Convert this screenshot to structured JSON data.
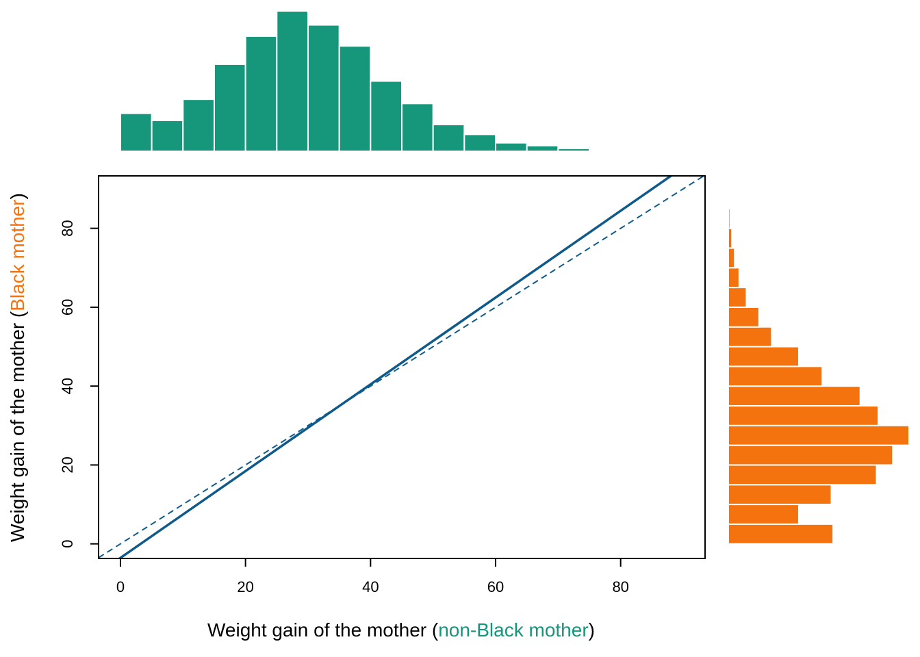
{
  "colors": {
    "non_black": "#16967A",
    "black": "#F5730E",
    "line": "#0E5A8A",
    "axis": "#000000"
  },
  "chart_data": [
    {
      "type": "line",
      "xlabel": {
        "prefix": "Weight gain of the mother (",
        "highlight": "non-Black mother",
        "suffix": ")"
      },
      "ylabel": {
        "prefix": "Weight gain of the mother (",
        "highlight": "Black mother",
        "suffix": ")"
      },
      "xlim": [
        -3.5,
        93.5
      ],
      "ylim": [
        -3.7,
        93.3
      ],
      "x_ticks": [
        "0",
        "20",
        "40",
        "60",
        "80"
      ],
      "y_ticks": [
        "0",
        "20",
        "40",
        "60",
        "80"
      ],
      "series": [
        {
          "style": "solid",
          "x": [
            -3.5,
            93.5
          ],
          "y": [
            -7.4,
            99.3
          ]
        },
        {
          "style": "dashed",
          "x": [
            -3.5,
            93.5
          ],
          "y": [
            -3.5,
            93.5
          ]
        }
      ],
      "grid": false
    },
    {
      "type": "bar",
      "orientation": "vertical",
      "bin_edges": [
        0,
        5,
        10,
        15,
        20,
        25,
        30,
        35,
        40,
        45,
        50,
        55,
        60,
        65,
        70,
        75,
        80
      ],
      "values": [
        27,
        22,
        37,
        62,
        82,
        100,
        90,
        75,
        50,
        34,
        19,
        12,
        6,
        4,
        2,
        0.5
      ],
      "ylim": [
        0,
        100
      ]
    },
    {
      "type": "bar",
      "orientation": "horizontal",
      "bin_edges": [
        0,
        5,
        10,
        15,
        20,
        25,
        30,
        35,
        40,
        45,
        50,
        55,
        60,
        65,
        70,
        75,
        80,
        85,
        90
      ],
      "values": [
        58,
        39,
        57,
        82,
        91,
        100,
        83,
        73,
        52,
        39,
        24,
        17,
        10,
        6,
        3.5,
        2,
        1,
        0.5
      ],
      "xlim": [
        0,
        100
      ]
    }
  ]
}
